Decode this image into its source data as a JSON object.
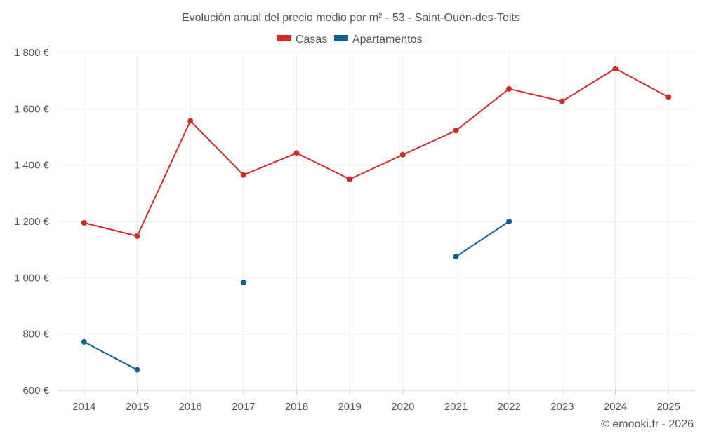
{
  "chart_data": {
    "type": "line",
    "title": "Evolución anual del precio medio por m² - 53 - Saint-Ouën-des-Toits",
    "xlabel": "",
    "ylabel": "",
    "ylim": [
      600,
      1800
    ],
    "yticks": [
      600,
      800,
      1000,
      1200,
      1400,
      1600,
      1800
    ],
    "ytick_labels": [
      "600 €",
      "800 €",
      "1 000 €",
      "1 200 €",
      "1 400 €",
      "1 600 €",
      "1 800 €"
    ],
    "categories": [
      "2014",
      "2015",
      "2016",
      "2017",
      "2018",
      "2019",
      "2020",
      "2021",
      "2022",
      "2023",
      "2024",
      "2025"
    ],
    "grid": true,
    "legend_position": "top-center",
    "series": [
      {
        "name": "Casas",
        "color": "#d32a2a",
        "values": [
          1195,
          1148,
          1557,
          1365,
          1443,
          1350,
          1437,
          1523,
          1671,
          1627,
          1743,
          1642
        ]
      },
      {
        "name": "Apartamentos",
        "color": "#0e6193",
        "values": [
          772,
          673,
          null,
          983,
          null,
          null,
          null,
          1075,
          1200,
          null,
          null,
          null
        ]
      }
    ]
  },
  "credit": "© emooki.fr - 2026"
}
